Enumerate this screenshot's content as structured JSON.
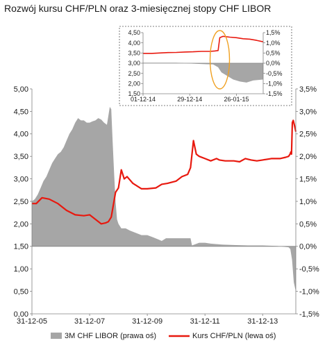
{
  "title": "Rozwój kursu CHF/PLN oraz 3-miesięcznej stopy CHF LIBOR",
  "colors": {
    "libor": "#a6a6a6",
    "chfpln": "#e8180e",
    "highlight": "#f0a020",
    "axis": "#808080",
    "text": "#1a1a1a"
  },
  "chart_data": [
    {
      "id": "main",
      "type": "area+line",
      "y_left": {
        "lim": [
          0,
          5
        ],
        "ticks": [
          "0,00",
          "0,50",
          "1,00",
          "1,50",
          "2,00",
          "2,50",
          "3,00",
          "3,50",
          "4,00",
          "4,50",
          "5,00"
        ]
      },
      "y_right": {
        "lim": [
          -1.5,
          3.5
        ],
        "ticks": [
          "-1,5%",
          "-1,0%",
          "-0,5%",
          "0,0%",
          "0,5%",
          "1,0%",
          "1,5%",
          "2,0%",
          "2,5%",
          "3,0%",
          "3,5%"
        ]
      },
      "x": {
        "ticks": [
          "31-12-05",
          "31-12-07",
          "31-12-09",
          "31-12-11",
          "31-12-13"
        ],
        "tick_years": [
          2006.0,
          2008.0,
          2010.0,
          2012.0,
          2014.0
        ],
        "lim_years": [
          2006.0,
          2015.15
        ]
      },
      "series": [
        {
          "name": "3M CHF LIBOR (prawa oś)",
          "type": "area",
          "axis": "right",
          "points": [
            [
              2006.0,
              1.0
            ],
            [
              2006.1,
              1.05
            ],
            [
              2006.2,
              1.15
            ],
            [
              2006.3,
              1.3
            ],
            [
              2006.4,
              1.45
            ],
            [
              2006.5,
              1.55
            ],
            [
              2006.6,
              1.7
            ],
            [
              2006.7,
              1.85
            ],
            [
              2006.8,
              1.95
            ],
            [
              2006.9,
              2.05
            ],
            [
              2007.0,
              2.1
            ],
            [
              2007.1,
              2.2
            ],
            [
              2007.2,
              2.35
            ],
            [
              2007.3,
              2.5
            ],
            [
              2007.4,
              2.6
            ],
            [
              2007.5,
              2.75
            ],
            [
              2007.6,
              2.85
            ],
            [
              2007.7,
              2.8
            ],
            [
              2007.8,
              2.8
            ],
            [
              2007.9,
              2.75
            ],
            [
              2008.0,
              2.75
            ],
            [
              2008.1,
              2.78
            ],
            [
              2008.2,
              2.8
            ],
            [
              2008.3,
              2.85
            ],
            [
              2008.4,
              2.82
            ],
            [
              2008.5,
              2.75
            ],
            [
              2008.6,
              2.7
            ],
            [
              2008.7,
              3.1
            ],
            [
              2008.75,
              3.05
            ],
            [
              2008.8,
              2.3
            ],
            [
              2008.85,
              1.6
            ],
            [
              2008.9,
              1.0
            ],
            [
              2008.95,
              0.6
            ],
            [
              2009.0,
              0.5
            ],
            [
              2009.1,
              0.4
            ],
            [
              2009.25,
              0.4
            ],
            [
              2009.4,
              0.35
            ],
            [
              2009.6,
              0.3
            ],
            [
              2009.8,
              0.25
            ],
            [
              2010.0,
              0.25
            ],
            [
              2010.2,
              0.2
            ],
            [
              2010.4,
              0.15
            ],
            [
              2010.5,
              0.12
            ],
            [
              2010.65,
              0.18
            ],
            [
              2011.0,
              0.18
            ],
            [
              2011.5,
              0.18
            ],
            [
              2011.55,
              0.02
            ],
            [
              2011.8,
              0.08
            ],
            [
              2012.0,
              0.08
            ],
            [
              2012.2,
              0.06
            ],
            [
              2012.6,
              0.04
            ],
            [
              2013.0,
              0.03
            ],
            [
              2013.5,
              0.02
            ],
            [
              2014.0,
              0.02
            ],
            [
              2014.5,
              0.01
            ],
            [
              2014.9,
              -0.02
            ],
            [
              2014.96,
              -0.06
            ],
            [
              2015.02,
              -0.3
            ],
            [
              2015.08,
              -0.8
            ],
            [
              2015.15,
              -1.0
            ]
          ]
        },
        {
          "name": "Kurs CHF/PLN (lewa oś)",
          "type": "line",
          "axis": "left",
          "points": [
            [
              2006.0,
              2.45
            ],
            [
              2006.15,
              2.45
            ],
            [
              2006.35,
              2.58
            ],
            [
              2006.6,
              2.55
            ],
            [
              2006.9,
              2.45
            ],
            [
              2007.2,
              2.3
            ],
            [
              2007.5,
              2.2
            ],
            [
              2007.8,
              2.18
            ],
            [
              2008.0,
              2.2
            ],
            [
              2008.2,
              2.1
            ],
            [
              2008.4,
              2.0
            ],
            [
              2008.55,
              2.02
            ],
            [
              2008.65,
              2.05
            ],
            [
              2008.75,
              2.15
            ],
            [
              2008.9,
              2.7
            ],
            [
              2009.0,
              2.8
            ],
            [
              2009.1,
              3.2
            ],
            [
              2009.2,
              3.0
            ],
            [
              2009.3,
              3.05
            ],
            [
              2009.5,
              2.9
            ],
            [
              2009.8,
              2.78
            ],
            [
              2010.0,
              2.78
            ],
            [
              2010.3,
              2.8
            ],
            [
              2010.5,
              2.88
            ],
            [
              2010.7,
              2.9
            ],
            [
              2011.0,
              2.95
            ],
            [
              2011.2,
              3.05
            ],
            [
              2011.4,
              3.1
            ],
            [
              2011.5,
              3.25
            ],
            [
              2011.6,
              3.85
            ],
            [
              2011.7,
              3.55
            ],
            [
              2011.8,
              3.5
            ],
            [
              2012.0,
              3.45
            ],
            [
              2012.2,
              3.4
            ],
            [
              2012.4,
              3.45
            ],
            [
              2012.5,
              3.42
            ],
            [
              2012.7,
              3.4
            ],
            [
              2013.0,
              3.4
            ],
            [
              2013.2,
              3.38
            ],
            [
              2013.4,
              3.45
            ],
            [
              2013.6,
              3.42
            ],
            [
              2013.8,
              3.4
            ],
            [
              2014.0,
              3.42
            ],
            [
              2014.3,
              3.45
            ],
            [
              2014.6,
              3.45
            ],
            [
              2014.8,
              3.48
            ],
            [
              2014.9,
              3.5
            ],
            [
              2014.95,
              3.55
            ],
            [
              2014.98,
              3.6
            ],
            [
              2015.0,
              3.55
            ],
            [
              2015.03,
              4.25
            ],
            [
              2015.06,
              4.3
            ],
            [
              2015.1,
              4.2
            ],
            [
              2015.15,
              4.05
            ]
          ]
        }
      ]
    },
    {
      "id": "inset",
      "type": "area+line",
      "y_left": {
        "lim": [
          1.5,
          4.5
        ],
        "ticks": [
          "1,50",
          "2,00",
          "2,50",
          "3,00",
          "3,50",
          "4,00",
          "4,50"
        ]
      },
      "y_right": {
        "lim": [
          -1.5,
          1.5
        ],
        "ticks": [
          "-1,5%",
          "-1,0%",
          "-0,5%",
          "0,0%",
          "0,5%",
          "1,0%",
          "1,5%"
        ]
      },
      "x": {
        "ticks": [
          "01-12-14",
          "29-12-14",
          "26-01-15"
        ],
        "tick_days": [
          0,
          28,
          56
        ],
        "lim_days": [
          0,
          72
        ]
      },
      "series": [
        {
          "name": "3M CHF LIBOR (prawa oś)",
          "type": "area",
          "axis": "right",
          "points": [
            [
              0,
              0.02
            ],
            [
              20,
              0.02
            ],
            [
              25,
              0.0
            ],
            [
              30,
              -0.02
            ],
            [
              38,
              -0.05
            ],
            [
              42,
              -0.06
            ],
            [
              45,
              -0.2
            ],
            [
              47,
              -0.45
            ],
            [
              50,
              -0.6
            ],
            [
              54,
              -0.8
            ],
            [
              58,
              -0.9
            ],
            [
              62,
              -0.95
            ],
            [
              66,
              -0.85
            ],
            [
              72,
              -0.8
            ]
          ]
        },
        {
          "name": "Kurs CHF/PLN (lewa oś)",
          "type": "line",
          "axis": "left",
          "points": [
            [
              0,
              3.48
            ],
            [
              5,
              3.48
            ],
            [
              10,
              3.5
            ],
            [
              15,
              3.52
            ],
            [
              20,
              3.53
            ],
            [
              25,
              3.55
            ],
            [
              30,
              3.56
            ],
            [
              35,
              3.58
            ],
            [
              40,
              3.58
            ],
            [
              43,
              3.6
            ],
            [
              45,
              3.62
            ],
            [
              46,
              4.25
            ],
            [
              48,
              4.32
            ],
            [
              52,
              4.28
            ],
            [
              56,
              4.25
            ],
            [
              60,
              4.2
            ],
            [
              64,
              4.18
            ],
            [
              68,
              4.12
            ],
            [
              72,
              4.05
            ]
          ]
        }
      ],
      "annotation": "highlight ellipse around mid-January 2015 jump"
    }
  ],
  "legend": {
    "libor": "3M CHF LIBOR (prawa oś)",
    "chfpln": "Kurs CHF/PLN (lewa oś)"
  }
}
